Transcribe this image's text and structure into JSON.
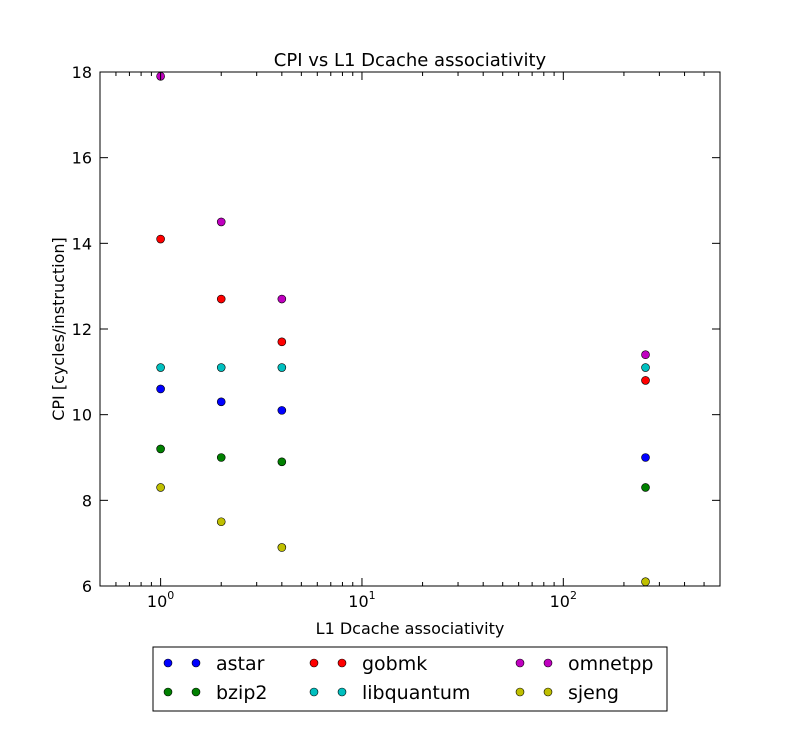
{
  "chart_data": {
    "type": "scatter",
    "title": "CPI vs L1 Dcache associativity",
    "xlabel": "L1 Dcache associativity",
    "ylabel": "CPI [cycles/instruction]",
    "xscale": "log",
    "xlim": [
      0.5,
      600
    ],
    "ylim": [
      6,
      18
    ],
    "xticks": [
      {
        "value": 1,
        "base": "10",
        "exp": "0"
      },
      {
        "value": 10,
        "base": "10",
        "exp": "1"
      },
      {
        "value": 100,
        "base": "10",
        "exp": "2"
      }
    ],
    "yticks": [
      6,
      8,
      10,
      12,
      14,
      16,
      18
    ],
    "grid": false,
    "legend_position": "below",
    "series": [
      {
        "name": "astar",
        "color": "#0000ff",
        "x": [
          1,
          2,
          4,
          256
        ],
        "y": [
          10.6,
          10.3,
          10.1,
          9.0
        ]
      },
      {
        "name": "bzip2",
        "color": "#008000",
        "x": [
          1,
          2,
          4,
          256
        ],
        "y": [
          9.2,
          9.0,
          8.9,
          8.3
        ]
      },
      {
        "name": "gobmk",
        "color": "#ff0000",
        "x": [
          1,
          2,
          4,
          256
        ],
        "y": [
          14.1,
          12.7,
          11.7,
          10.8
        ]
      },
      {
        "name": "libquantum",
        "color": "#00bfbf",
        "x": [
          1,
          2,
          4,
          256
        ],
        "y": [
          11.1,
          11.1,
          11.1,
          11.1
        ]
      },
      {
        "name": "omnetpp",
        "color": "#bf00bf",
        "x": [
          1,
          2,
          4,
          256
        ],
        "y": [
          17.9,
          14.5,
          12.7,
          11.4
        ]
      },
      {
        "name": "sjeng",
        "color": "#bfbf00",
        "x": [
          1,
          2,
          4,
          256
        ],
        "y": [
          8.3,
          7.5,
          6.9,
          6.1
        ]
      }
    ]
  }
}
